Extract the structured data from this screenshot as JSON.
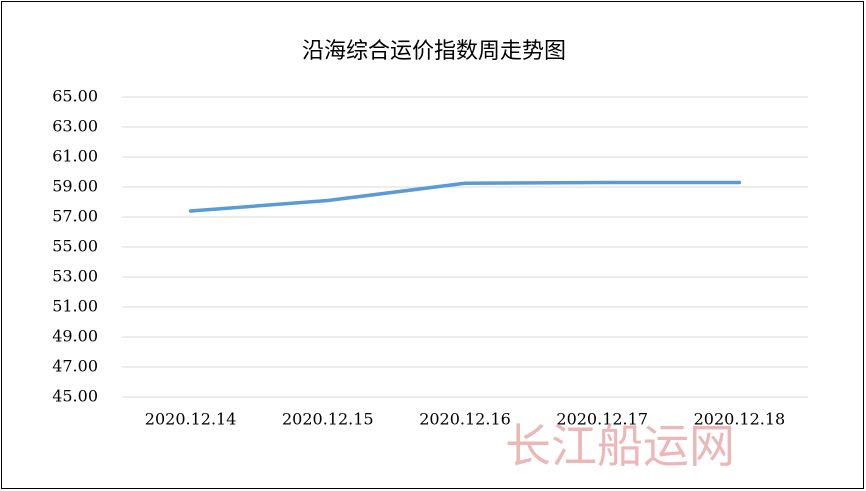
{
  "chart_data": {
    "type": "line",
    "title": "沿海综合运价指数周走势图",
    "categories": [
      "2020.12.14",
      "2020.12.15",
      "2020.12.16",
      "2020.12.17",
      "2020.12.18"
    ],
    "values": [
      57.4,
      58.1,
      59.25,
      59.3,
      59.3
    ],
    "color": "#5b9bd5",
    "ylim": [
      45,
      65
    ],
    "yticks": [
      {
        "value": 45,
        "label": "45.00"
      },
      {
        "value": 47,
        "label": "47.00"
      },
      {
        "value": 49,
        "label": "49.00"
      },
      {
        "value": 51,
        "label": "51.00"
      },
      {
        "value": 53,
        "label": "53.00"
      },
      {
        "value": 55,
        "label": "55.00"
      },
      {
        "value": 57,
        "label": "57.00"
      },
      {
        "value": 59,
        "label": "59.00"
      },
      {
        "value": 61,
        "label": "61.00"
      },
      {
        "value": 63,
        "label": "63.00"
      },
      {
        "value": 65,
        "label": "65.00"
      }
    ],
    "grid": true,
    "watermark": "长江船运网"
  }
}
